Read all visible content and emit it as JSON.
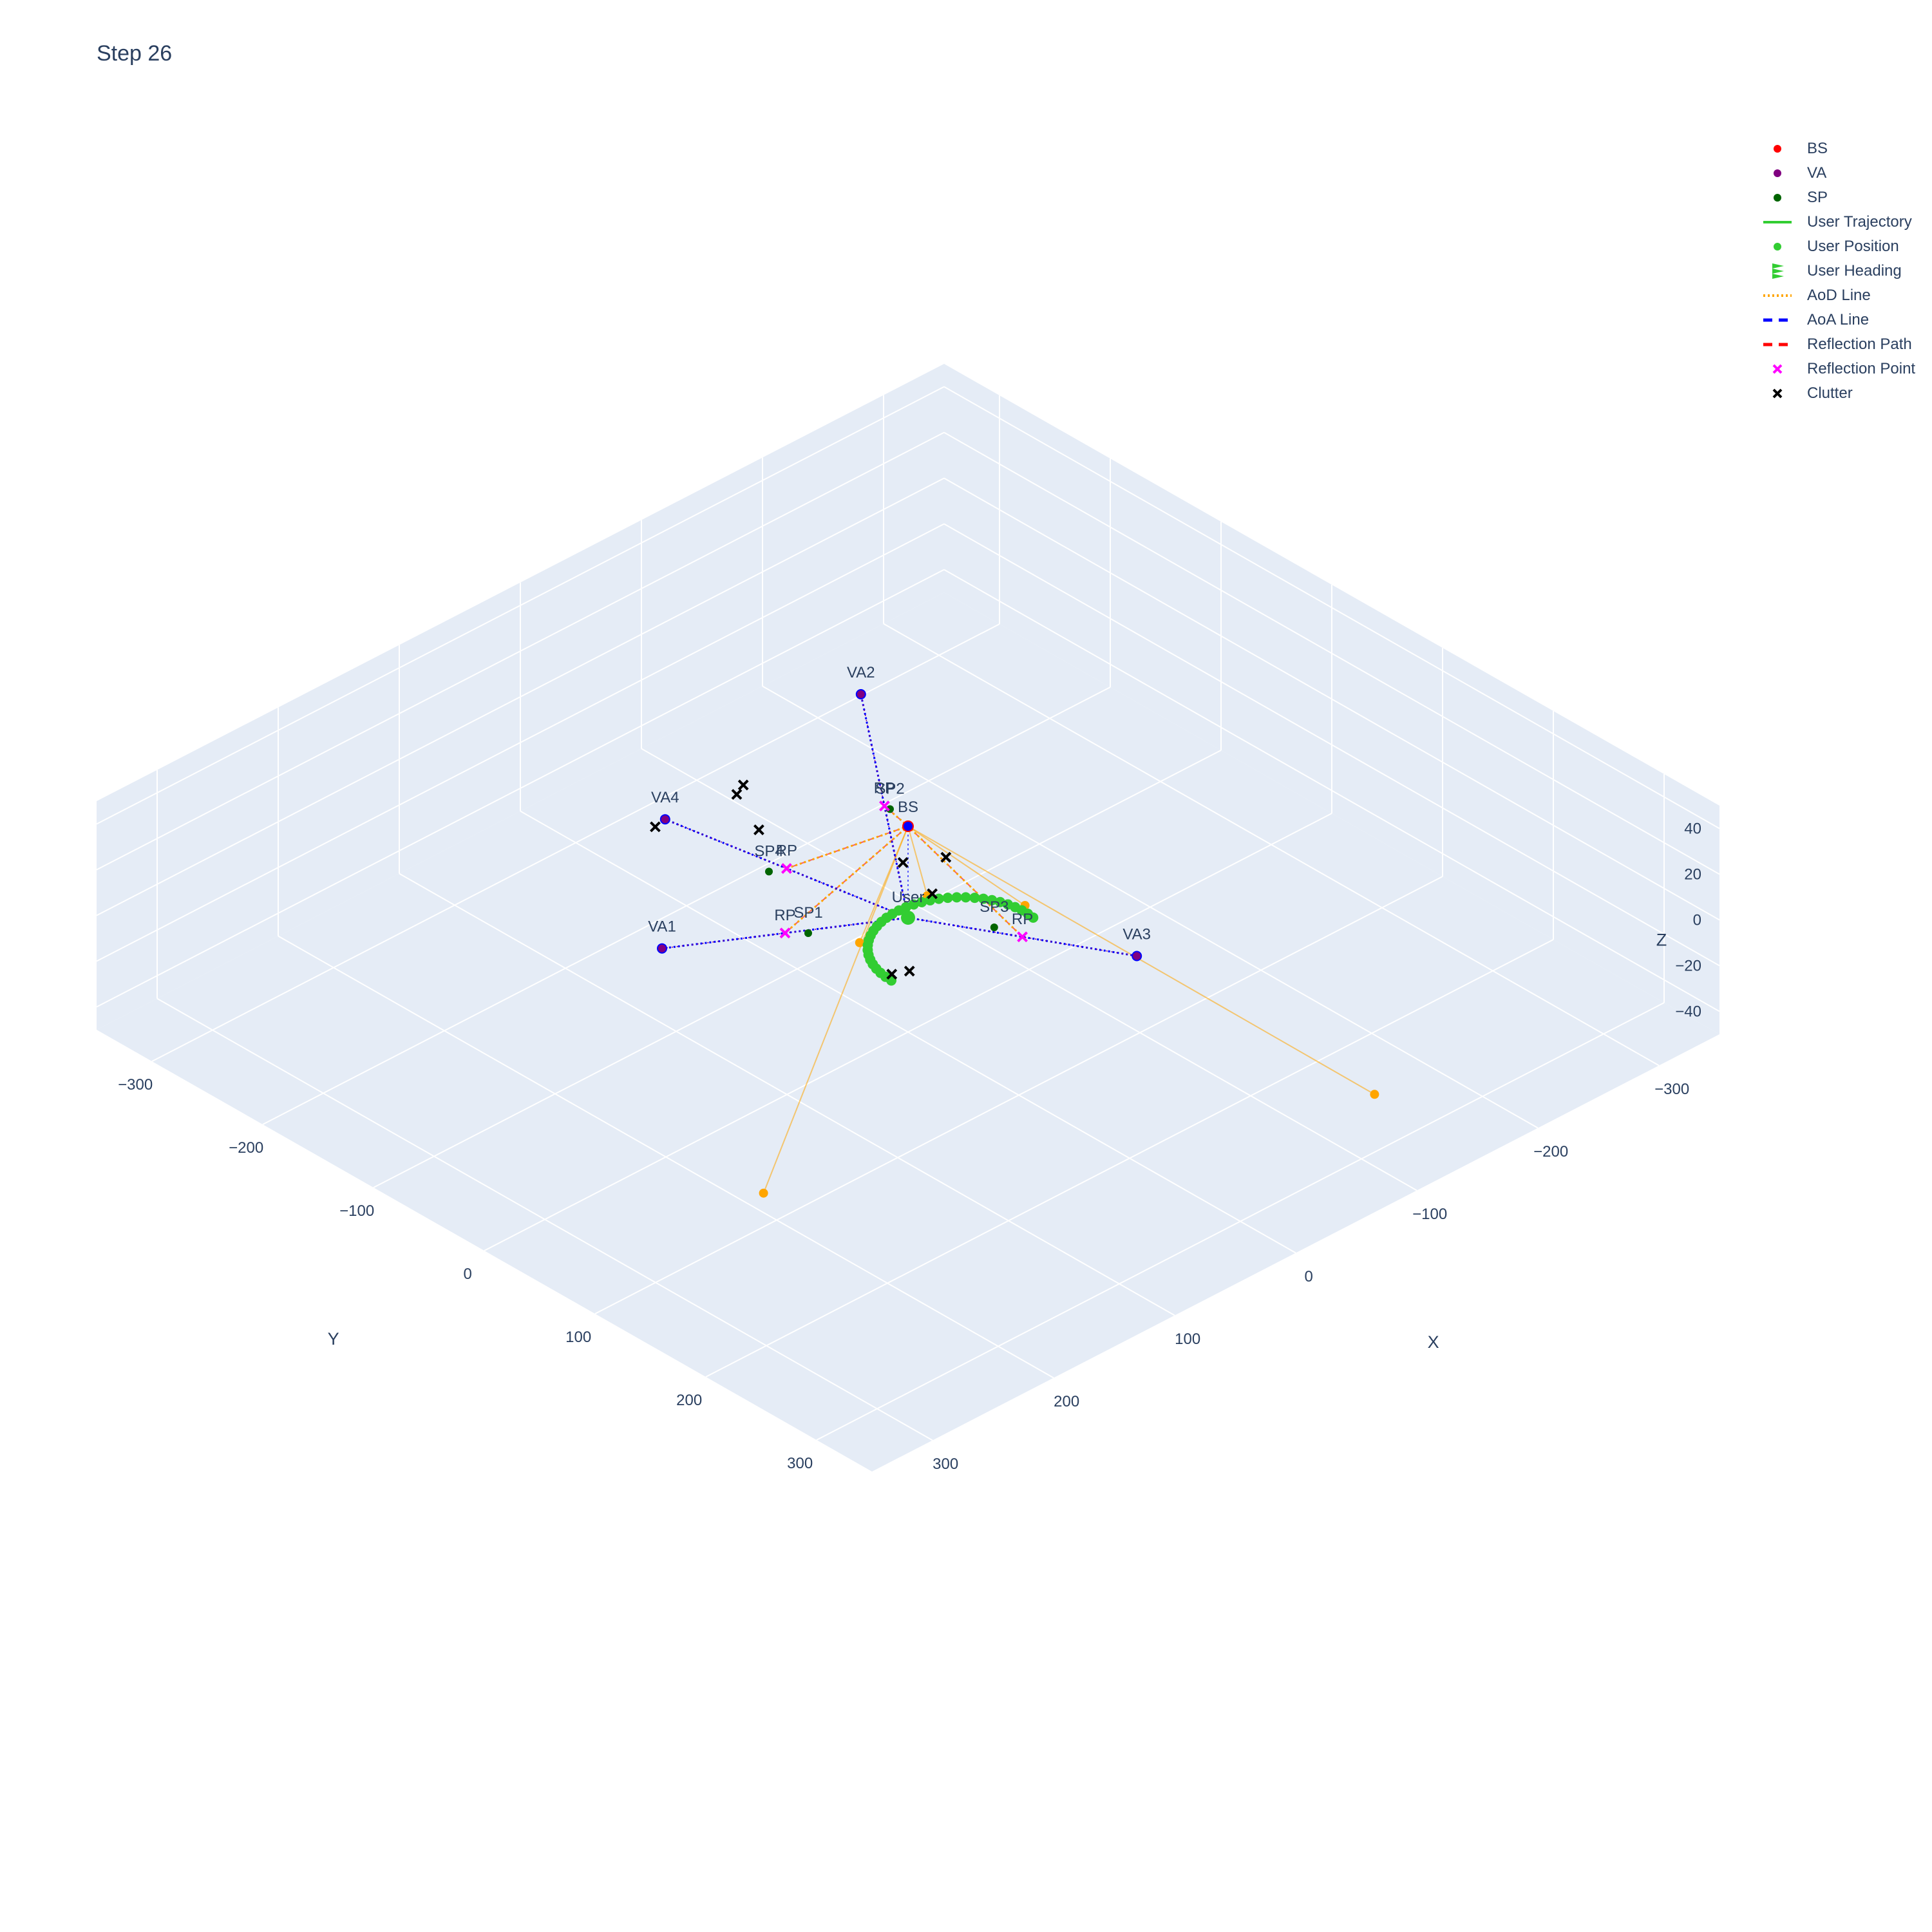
{
  "title": "Step 26",
  "legend": [
    {
      "name": "BS",
      "symbol": "dot",
      "color": "#ff0000"
    },
    {
      "name": "VA",
      "symbol": "dot",
      "color": "#800080"
    },
    {
      "name": "SP",
      "symbol": "dot",
      "color": "#006400"
    },
    {
      "name": "User Trajectory",
      "symbol": "line",
      "color": "#32cd32"
    },
    {
      "name": "User Position",
      "symbol": "dot",
      "color": "#32cd32"
    },
    {
      "name": "User Heading",
      "symbol": "cone",
      "color": "#32cd32"
    },
    {
      "name": "AoD Line",
      "symbol": "dotline",
      "color": "#ffa500"
    },
    {
      "name": "AoA Line",
      "symbol": "dashline",
      "color": "#0000ff"
    },
    {
      "name": "Reflection Path",
      "symbol": "dashline",
      "color": "#ff0000"
    },
    {
      "name": "Reflection Point",
      "symbol": "x",
      "color": "#ff00ff"
    },
    {
      "name": "Clutter",
      "symbol": "x",
      "color": "#000000"
    }
  ],
  "chart_data": {
    "type": "scatter3d",
    "title": "Step 26",
    "axes": {
      "x": {
        "label": "X",
        "range": [
          -350,
          350
        ],
        "ticks": [
          -300,
          -200,
          -100,
          0,
          100,
          200,
          300
        ]
      },
      "y": {
        "label": "Y",
        "range": [
          -350,
          350
        ],
        "ticks": [
          -300,
          -200,
          -100,
          0,
          100,
          200,
          300
        ]
      },
      "z": {
        "label": "Z",
        "range": [
          -50,
          50
        ],
        "ticks": [
          -40,
          -20,
          0,
          20,
          40
        ]
      }
    },
    "camera": {
      "eye": [
        1.25,
        1.25,
        1.25
      ],
      "projection": "perspective"
    },
    "bs": {
      "label": "BS",
      "pos": [
        0,
        0,
        40
      ]
    },
    "user": {
      "label": "User",
      "pos": [
        0,
        0,
        0
      ]
    },
    "vas": [
      {
        "label": "VA1",
        "pos": [
          -80,
          130,
          0
        ]
      },
      {
        "label": "VA2",
        "pos": [
          -130,
          -80,
          40
        ]
      },
      {
        "label": "VA3",
        "pos": [
          130,
          -70,
          0
        ]
      },
      {
        "label": "VA4",
        "pos": [
          -110,
          100,
          40
        ]
      }
    ],
    "sps": [
      {
        "label": "SP1",
        "pos": [
          -30,
          55,
          0
        ]
      },
      {
        "label": "SP2",
        "pos": [
          -60,
          -40,
          20
        ]
      },
      {
        "label": "SP3",
        "pos": [
          45,
          -30,
          0
        ]
      },
      {
        "label": "SP4",
        "pos": [
          -60,
          60,
          20
        ]
      }
    ],
    "reflection_points": [
      {
        "label": "RP",
        "pos": [
          -40,
          65,
          0
        ]
      },
      {
        "label": "RP",
        "pos": [
          -65,
          -40,
          20
        ]
      },
      {
        "label": "RP",
        "pos": [
          65,
          -35,
          0
        ]
      },
      {
        "label": "RP",
        "pos": [
          -55,
          50,
          20
        ]
      }
    ],
    "clutter": [
      [
        -108,
        110,
        40
      ],
      [
        -100,
        50,
        40
      ],
      [
        -105,
        40,
        40
      ],
      [
        -80,
        50,
        30
      ],
      [
        -10,
        -5,
        20
      ],
      [
        0,
        -20,
        5
      ],
      [
        -15,
        -45,
        10
      ],
      [
        45,
        40,
        0
      ],
      [
        40,
        50,
        0
      ]
    ],
    "aod_endpoints": [
      [
        110,
        220,
        -30
      ],
      [
        40,
        -60,
        0
      ],
      [
        -10,
        -25,
        0
      ],
      [
        0,
        40,
        0
      ],
      [
        290,
        -120,
        -30
      ]
    ],
    "trajectory_params": {
      "center": [
        45,
        0
      ],
      "radius": 55,
      "z": 0,
      "points": 34
    }
  }
}
